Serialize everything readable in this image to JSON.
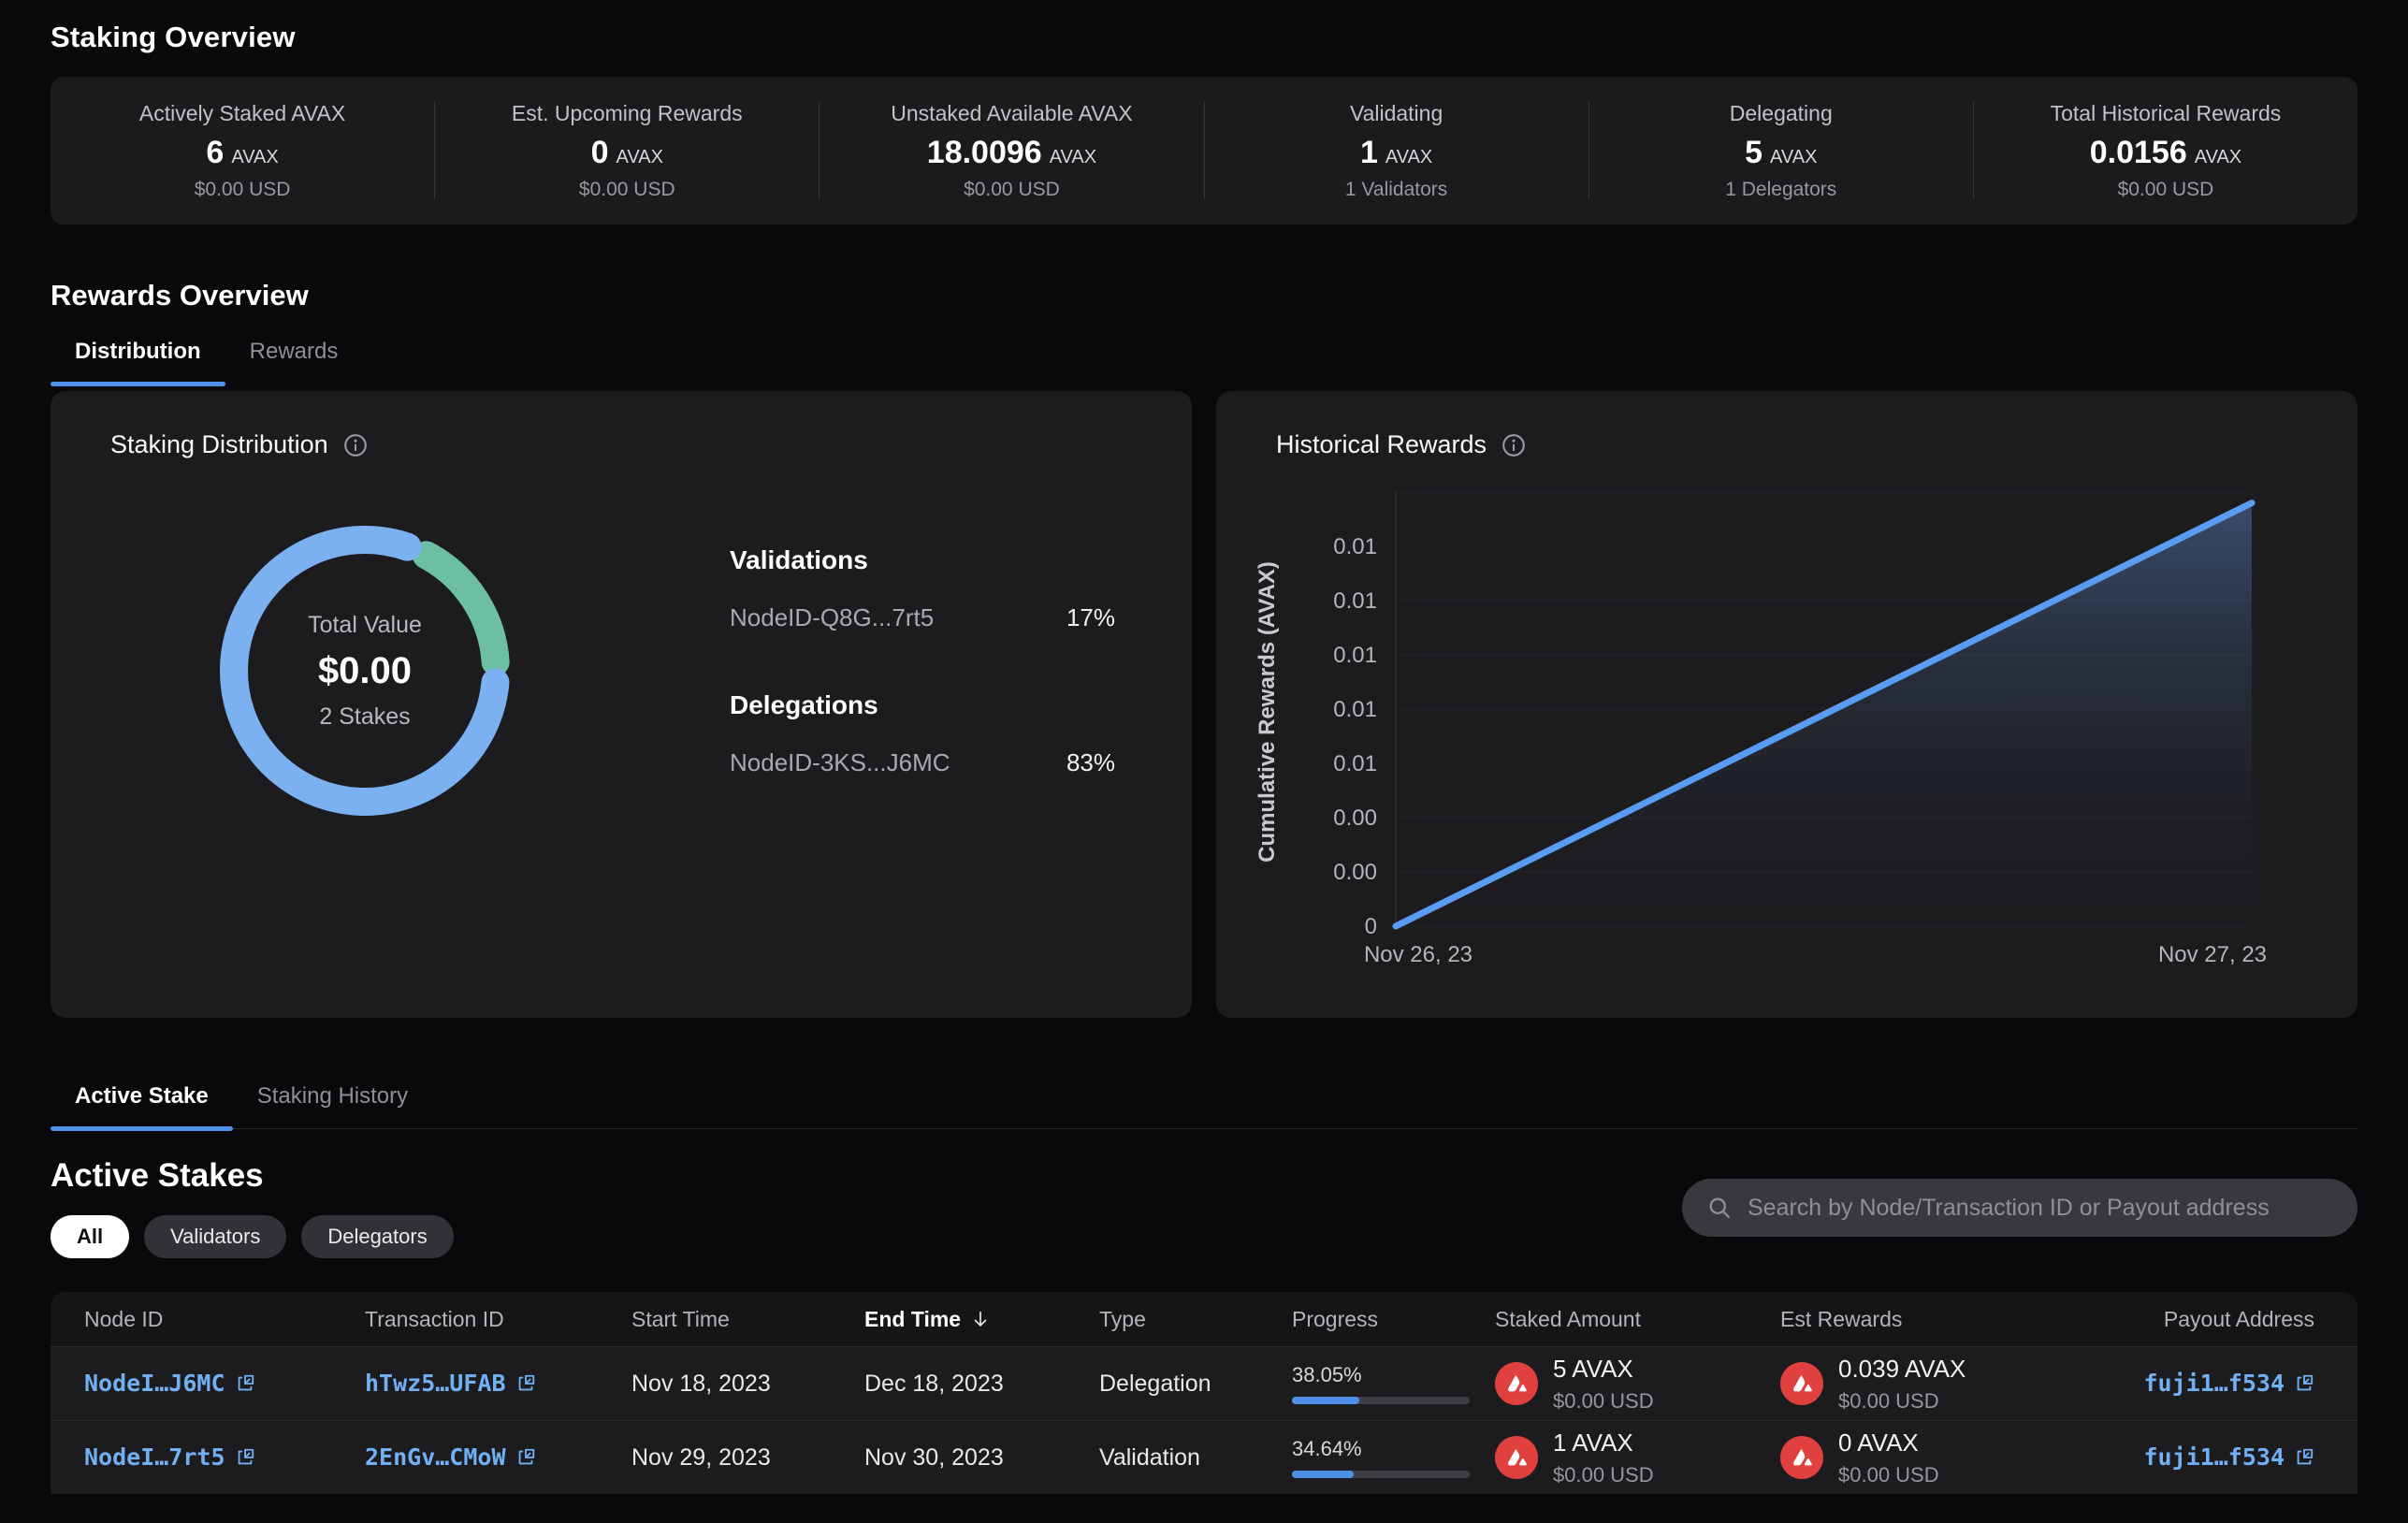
{
  "colors": {
    "accent_blue": "#4f90e8",
    "link_blue": "#72b0f4",
    "donut_blue": "#7cb1f1",
    "donut_green": "#6dbfa3",
    "chart_line": "#5b9cf3",
    "avax_red": "#e0413e",
    "progress_fill": "#4e90e8"
  },
  "staking_overview": {
    "heading": "Staking Overview",
    "cards": [
      {
        "label": "Actively Staked AVAX",
        "value": "6",
        "unit": "AVAX",
        "sub": "$0.00 USD"
      },
      {
        "label": "Est. Upcoming Rewards",
        "value": "0",
        "unit": "AVAX",
        "sub": "$0.00 USD"
      },
      {
        "label": "Unstaked Available AVAX",
        "value": "18.0096",
        "unit": "AVAX",
        "sub": "$0.00 USD"
      },
      {
        "label": "Validating",
        "value": "1",
        "unit": "AVAX",
        "sub": "1 Validators"
      },
      {
        "label": "Delegating",
        "value": "5",
        "unit": "AVAX",
        "sub": "1 Delegators"
      },
      {
        "label": "Total Historical Rewards",
        "value": "0.0156",
        "unit": "AVAX",
        "sub": "$0.00 USD"
      }
    ]
  },
  "rewards_overview": {
    "heading": "Rewards Overview",
    "tabs": [
      {
        "label": "Distribution",
        "active": true
      },
      {
        "label": "Rewards",
        "active": false
      }
    ]
  },
  "distribution_panel": {
    "title": "Staking Distribution",
    "center": {
      "label": "Total Value",
      "value": "$0.00",
      "sub": "2 Stakes"
    },
    "groups": [
      {
        "heading": "Validations",
        "node": "NodeID-Q8G...7rt5",
        "pct": "17%"
      },
      {
        "heading": "Delegations",
        "node": "NodeID-3KS...J6MC",
        "pct": "83%"
      }
    ]
  },
  "historical_panel": {
    "title": "Historical Rewards"
  },
  "chart_data": [
    {
      "type": "pie",
      "style": "donut",
      "title": "Staking Distribution",
      "center_label": "Total Value",
      "center_value": "$0.00",
      "center_sub": "2 Stakes",
      "slices": [
        {
          "label": "Validations NodeID-Q8G...7rt5",
          "value": 17,
          "color": "#6dbfa3"
        },
        {
          "label": "Delegations NodeID-3KS...J6MC",
          "value": 83,
          "color": "#7cb1f1"
        }
      ],
      "unit": "%"
    },
    {
      "type": "line",
      "title": "Historical Rewards",
      "ylabel": "Cumulative Rewards (AVAX)",
      "x": [
        "Nov 26, 23",
        "Nov 27, 23"
      ],
      "series": [
        {
          "name": "Cumulative Rewards",
          "values": [
            0,
            0.0156
          ]
        }
      ],
      "ylim": [
        0,
        0.016
      ],
      "ytick_step": 0.002,
      "ytick_labels_bottom_up": [
        "0",
        "0.00",
        "0.00",
        "0.01",
        "0.01",
        "0.01",
        "0.01",
        "0.01"
      ],
      "grid": true,
      "legend": false,
      "line_color": "#5b9cf3",
      "fill": "blue-gradient"
    }
  ],
  "stake_tabs": [
    {
      "label": "Active Stake",
      "active": true
    },
    {
      "label": "Staking History",
      "active": false
    }
  ],
  "active_stakes": {
    "heading": "Active Stakes",
    "filters": [
      {
        "label": "All",
        "active": true
      },
      {
        "label": "Validators",
        "active": false
      },
      {
        "label": "Delegators",
        "active": false
      }
    ],
    "search_placeholder": "Search by Node/Transaction ID or Payout address",
    "table": {
      "columns": [
        "Node ID",
        "Transaction ID",
        "Start Time",
        "End Time",
        "Type",
        "Progress",
        "Staked Amount",
        "Est Rewards",
        "Payout Address"
      ],
      "sorted_column": "End Time",
      "rows": [
        {
          "node_id": "NodeI…J6MC",
          "tx_id": "hTwz5…UFAB",
          "start": "Nov 18, 2023",
          "end": "Dec 18, 2023",
          "type": "Delegation",
          "progress_pct": "38.05%",
          "progress": 38.05,
          "staked": "5 AVAX",
          "staked_usd": "$0.00 USD",
          "est": "0.039 AVAX",
          "est_usd": "$0.00 USD",
          "payout": "fuji1…f534"
        },
        {
          "node_id": "NodeI…7rt5",
          "tx_id": "2EnGv…CMoW",
          "start": "Nov 29, 2023",
          "end": "Nov 30, 2023",
          "type": "Validation",
          "progress_pct": "34.64%",
          "progress": 34.64,
          "staked": "1 AVAX",
          "staked_usd": "$0.00 USD",
          "est": "0 AVAX",
          "est_usd": "$0.00 USD",
          "payout": "fuji1…f534"
        }
      ]
    }
  }
}
